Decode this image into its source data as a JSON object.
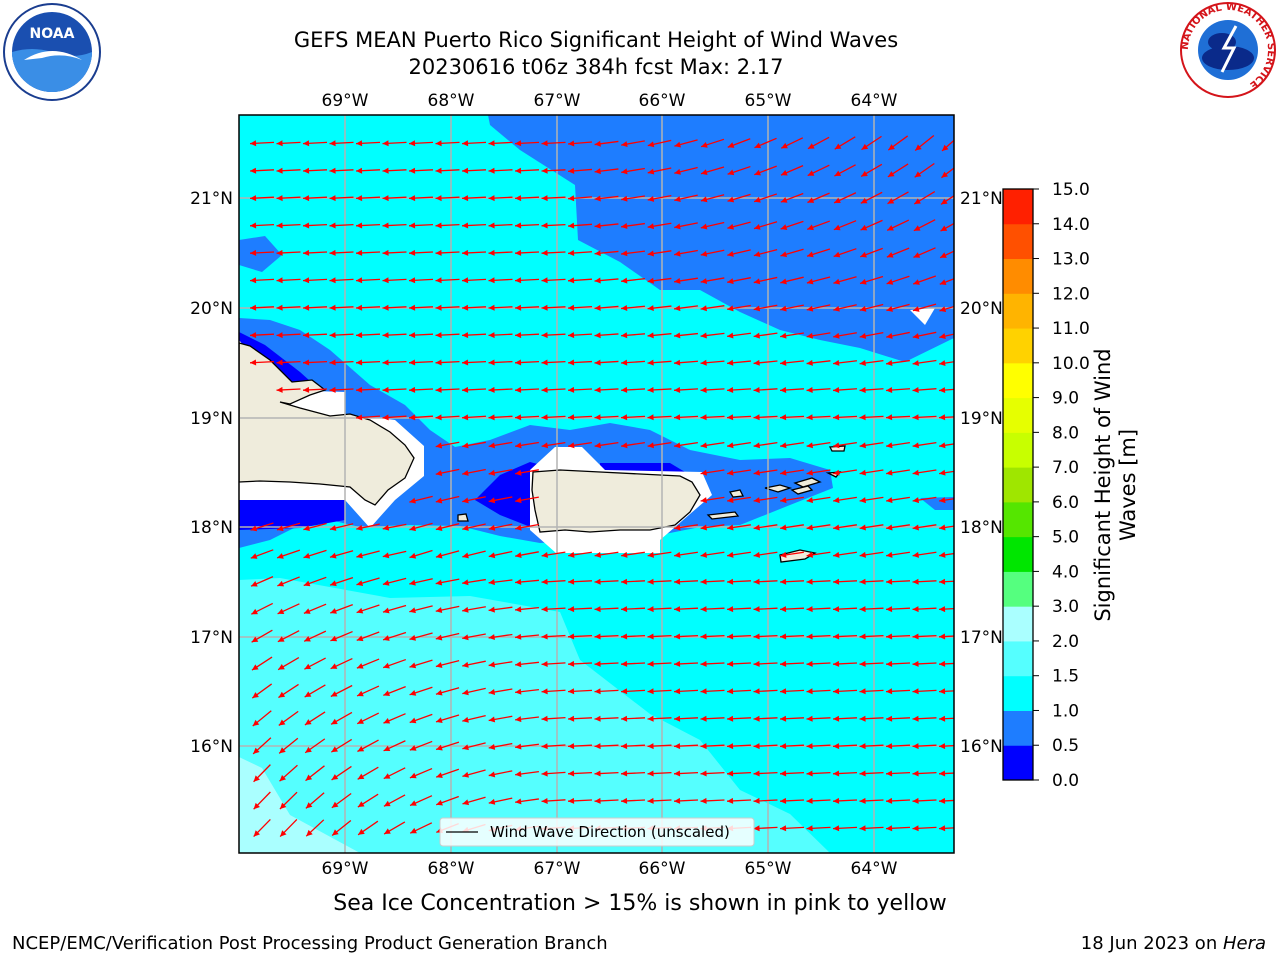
{
  "title": {
    "line1": "GEFS MEAN Puerto Rico Significant Height of Wind Waves",
    "line2": "20230616 t06z 384h fcst   Max: 2.17"
  },
  "map": {
    "lon_labels": [
      "69°W",
      "68°W",
      "67°W",
      "66°W",
      "65°W",
      "64°W"
    ],
    "lat_labels": [
      "21°N",
      "20°N",
      "19°N",
      "18°N",
      "17°N",
      "16°N"
    ],
    "legend_label": "Wind Wave Direction (unscaled)",
    "vector_color": "#ff0000"
  },
  "colorbar": {
    "label_line1": "Significant Height of Wind",
    "label_line2": "Waves [m]",
    "levels": [
      "0.0",
      "0.5",
      "1.0",
      "1.5",
      "2.0",
      "3.0",
      "4.0",
      "5.0",
      "6.0",
      "7.0",
      "8.0",
      "9.0",
      "10.0",
      "11.0",
      "12.0",
      "13.0",
      "14.0",
      "15.0"
    ],
    "colors": [
      "#0000ff",
      "#1e7dff",
      "#00ffff",
      "#55ffff",
      "#aaffff",
      "#55ff7f",
      "#00e600",
      "#55e600",
      "#9fe600",
      "#c8ff00",
      "#e6ff00",
      "#ffff00",
      "#ffd200",
      "#ffb400",
      "#ff8c00",
      "#ff5000",
      "#ff2000"
    ]
  },
  "footnote": "Sea Ice Concentration > 15% is shown in pink to yellow",
  "footer": {
    "left": "NCEP/EMC/Verification Post Processing Product Generation Branch",
    "right_prefix": "18 Jun 2023 on ",
    "right_host": "Hera"
  },
  "logos": {
    "noaa": "NOAA",
    "nws_ring": "NATIONAL WEATHER SERVICE"
  }
}
